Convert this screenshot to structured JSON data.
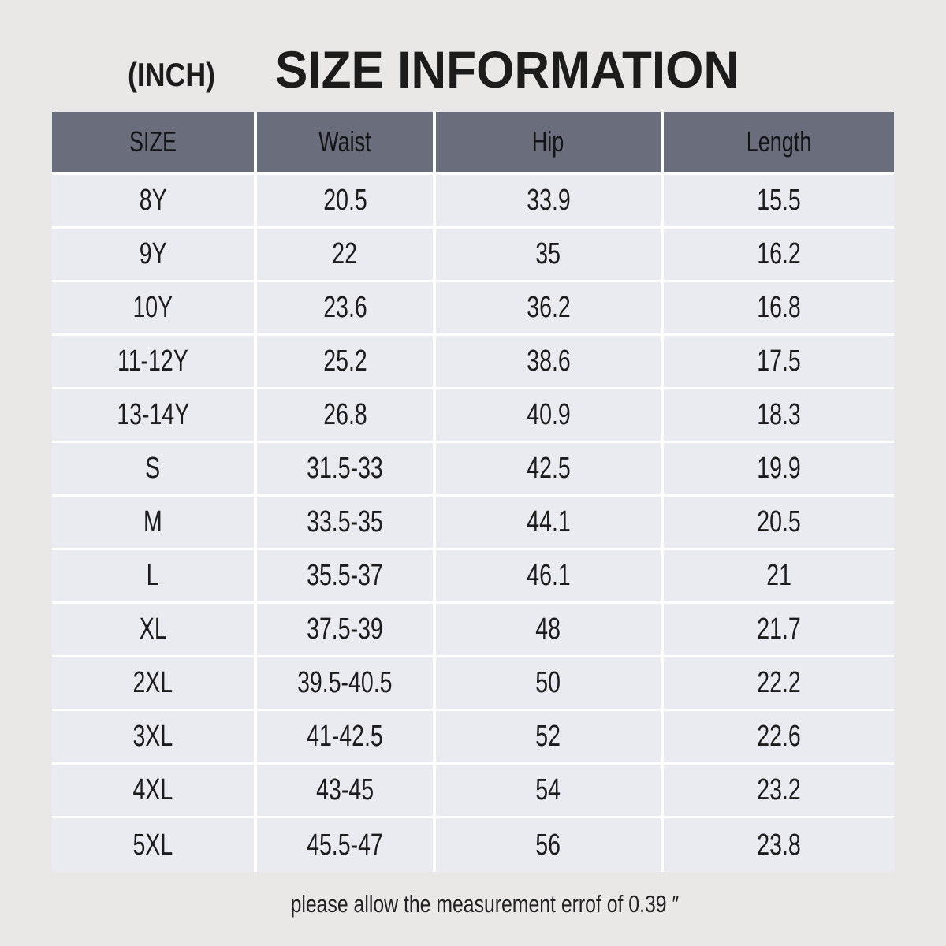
{
  "page": {
    "unit_label": "(INCH)",
    "title": "SIZE INFORMATION",
    "footer_note": "please allow the measurement errof of 0.39 ″"
  },
  "colors": {
    "page_bg": "#e9e8e7",
    "header_bg": "#6a6d7b",
    "row_bg": "#eaebf0",
    "grid_line": "#ffffff",
    "text": "#1c1c1c"
  },
  "chart_data": {
    "type": "table",
    "title": "SIZE INFORMATION",
    "unit": "INCH",
    "columns": [
      "SIZE",
      "Waist",
      "Hip",
      "Length"
    ],
    "column_keys": [
      "size",
      "waist",
      "hip",
      "length"
    ],
    "rows": [
      [
        "8Y",
        "20.5",
        "33.9",
        "15.5"
      ],
      [
        "9Y",
        "22",
        "35",
        "16.2"
      ],
      [
        "10Y",
        "23.6",
        "36.2",
        "16.8"
      ],
      [
        "11-12Y",
        "25.2",
        "38.6",
        "17.5"
      ],
      [
        "13-14Y",
        "26.8",
        "40.9",
        "18.3"
      ],
      [
        "S",
        "31.5-33",
        "42.5",
        "19.9"
      ],
      [
        "M",
        "33.5-35",
        "44.1",
        "20.5"
      ],
      [
        "L",
        "35.5-37",
        "46.1",
        "21"
      ],
      [
        "XL",
        "37.5-39",
        "48",
        "21.7"
      ],
      [
        "2XL",
        "39.5-40.5",
        "50",
        "22.2"
      ],
      [
        "3XL",
        "41-42.5",
        "52",
        "22.6"
      ],
      [
        "4XL",
        "43-45",
        "54",
        "23.2"
      ],
      [
        "5XL",
        "45.5-47",
        "56",
        "23.8"
      ]
    ],
    "note": "please allow the measurement errof of 0.39 ″"
  }
}
